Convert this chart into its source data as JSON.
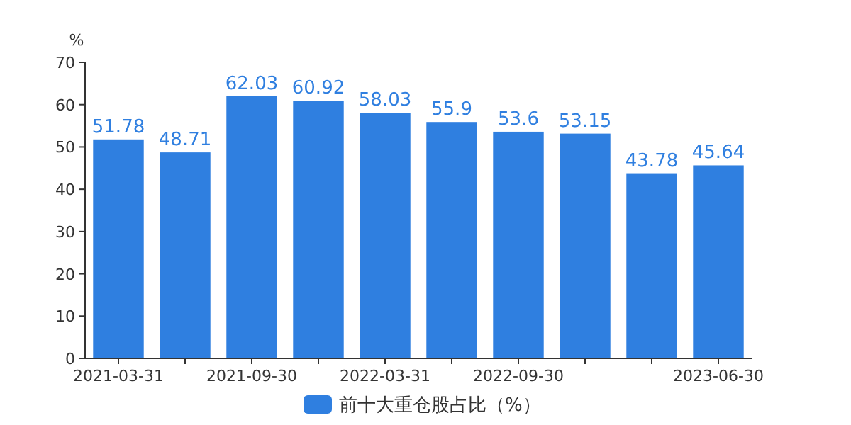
{
  "chart_data": {
    "type": "bar",
    "ylabel": "%",
    "categories": [
      "2021-03-31",
      null,
      "2021-09-30",
      null,
      "2022-03-31",
      null,
      "2022-09-30",
      null,
      null,
      "2023-06-30"
    ],
    "series": [
      {
        "name": "前十大重仓股占比（%）",
        "color": "#2f7fe0",
        "values": [
          51.78,
          48.71,
          62.03,
          60.92,
          58.03,
          55.9,
          53.6,
          53.15,
          43.78,
          45.64
        ]
      }
    ],
    "ylim": [
      0,
      70
    ],
    "yticks": [
      0,
      10,
      20,
      30,
      40,
      50,
      60,
      70
    ],
    "data_labels": true,
    "legend": "bottom",
    "grid": false
  }
}
